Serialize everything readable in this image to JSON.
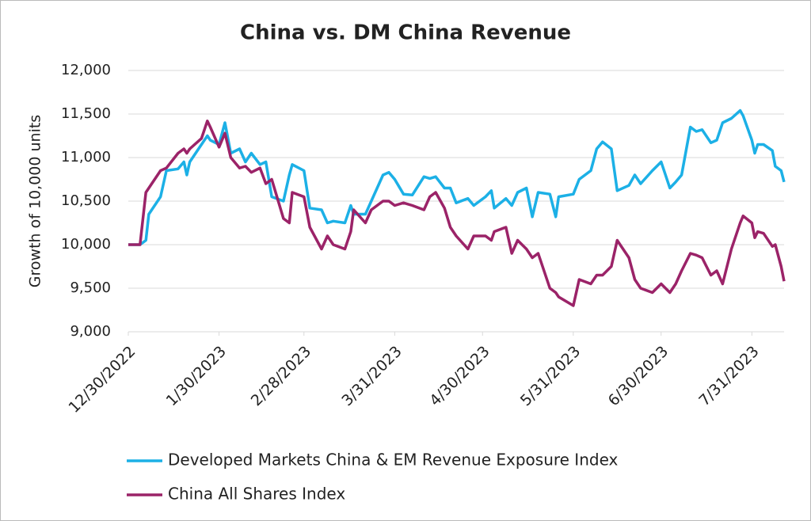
{
  "chart_data": {
    "type": "line",
    "title": "China vs. DM China Revenue",
    "y_label": "Growth of 10,000 units",
    "x": [
      "2022-12-30",
      "2023-01-03",
      "2023-01-05",
      "2023-01-06",
      "2023-01-10",
      "2023-01-12",
      "2023-01-16",
      "2023-01-18",
      "2023-01-19",
      "2023-01-20",
      "2023-01-24",
      "2023-01-26",
      "2023-01-27",
      "2023-01-30",
      "2023-02-01",
      "2023-02-03",
      "2023-02-06",
      "2023-02-08",
      "2023-02-10",
      "2023-02-13",
      "2023-02-15",
      "2023-02-17",
      "2023-02-21",
      "2023-02-23",
      "2023-02-24",
      "2023-02-28",
      "2023-03-02",
      "2023-03-06",
      "2023-03-08",
      "2023-03-10",
      "2023-03-14",
      "2023-03-16",
      "2023-03-17",
      "2023-03-21",
      "2023-03-23",
      "2023-03-27",
      "2023-03-29",
      "2023-03-31",
      "2023-04-03",
      "2023-04-06",
      "2023-04-10",
      "2023-04-12",
      "2023-04-14",
      "2023-04-17",
      "2023-04-19",
      "2023-04-21",
      "2023-04-25",
      "2023-04-27",
      "2023-05-01",
      "2023-05-03",
      "2023-05-04",
      "2023-05-08",
      "2023-05-10",
      "2023-05-12",
      "2023-05-15",
      "2023-05-17",
      "2023-05-19",
      "2023-05-23",
      "2023-05-25",
      "2023-05-26",
      "2023-05-31",
      "2023-06-02",
      "2023-06-06",
      "2023-06-08",
      "2023-06-10",
      "2023-06-13",
      "2023-06-15",
      "2023-06-19",
      "2023-06-21",
      "2023-06-23",
      "2023-06-27",
      "2023-06-30",
      "2023-07-03",
      "2023-07-05",
      "2023-07-07",
      "2023-07-10",
      "2023-07-12",
      "2023-07-14",
      "2023-07-17",
      "2023-07-19",
      "2023-07-21",
      "2023-07-24",
      "2023-07-27",
      "2023-07-28",
      "2023-07-31",
      "2023-08-01",
      "2023-08-02",
      "2023-08-04",
      "2023-08-07",
      "2023-08-08",
      "2023-08-10",
      "2023-08-11"
    ],
    "series": [
      {
        "name": "Developed Markets China & EM Revenue Exposure Index",
        "color": "#1cb0e6",
        "values": [
          10000,
          10000,
          10050,
          10350,
          10550,
          10850,
          10870,
          10950,
          10800,
          10950,
          11150,
          11250,
          11200,
          11150,
          11400,
          11050,
          11100,
          10950,
          11050,
          10920,
          10950,
          10550,
          10500,
          10800,
          10920,
          10850,
          10420,
          10400,
          10250,
          10270,
          10250,
          10450,
          10350,
          10350,
          10500,
          10800,
          10830,
          10750,
          10580,
          10570,
          10780,
          10760,
          10780,
          10650,
          10650,
          10480,
          10530,
          10450,
          10550,
          10620,
          10420,
          10530,
          10450,
          10600,
          10650,
          10320,
          10600,
          10580,
          10320,
          10550,
          10580,
          10750,
          10850,
          11100,
          11180,
          11100,
          10620,
          10680,
          10800,
          10700,
          10850,
          10950,
          10650,
          10720,
          10800,
          11350,
          11300,
          11320,
          11170,
          11200,
          11400,
          11450,
          11540,
          11480,
          11200,
          11050,
          11150,
          11150,
          11080,
          10900,
          10850,
          10720
        ]
      },
      {
        "name": "China All Shares Index",
        "color": "#9b2368",
        "values": [
          10000,
          10000,
          10600,
          10650,
          10850,
          10880,
          11050,
          11100,
          11050,
          11100,
          11220,
          11420,
          11350,
          11120,
          11280,
          11000,
          10880,
          10900,
          10830,
          10880,
          10700,
          10750,
          10300,
          10250,
          10600,
          10550,
          10200,
          9950,
          10100,
          10000,
          9950,
          10150,
          10400,
          10250,
          10400,
          10500,
          10500,
          10450,
          10480,
          10450,
          10400,
          10550,
          10600,
          10420,
          10200,
          10100,
          9950,
          10100,
          10100,
          10050,
          10150,
          10200,
          9900,
          10050,
          9950,
          9850,
          9900,
          9500,
          9450,
          9400,
          9300,
          9600,
          9550,
          9650,
          9650,
          9750,
          10050,
          9850,
          9600,
          9500,
          9450,
          9550,
          9450,
          9550,
          9700,
          9900,
          9880,
          9850,
          9650,
          9700,
          9550,
          9950,
          10250,
          10330,
          10250,
          10080,
          10150,
          10130,
          9980,
          10000,
          9750,
          9580
        ]
      }
    ],
    "xlim": [
      "2022-12-30",
      "2023-08-11"
    ],
    "xticks": [
      {
        "value": "2022-12-30",
        "label": "12/30/2022"
      },
      {
        "value": "2023-01-30",
        "label": "1/30/2023"
      },
      {
        "value": "2023-02-28",
        "label": "2/28/2023"
      },
      {
        "value": "2023-03-31",
        "label": "3/31/2023"
      },
      {
        "value": "2023-04-30",
        "label": "4/30/2023"
      },
      {
        "value": "2023-05-31",
        "label": "5/31/2023"
      },
      {
        "value": "2023-06-30",
        "label": "6/30/2023"
      },
      {
        "value": "2023-07-31",
        "label": "7/31/2023"
      }
    ],
    "ylim": [
      9000,
      12000
    ],
    "yticks": [
      {
        "value": 9000,
        "label": "9,000"
      },
      {
        "value": 9500,
        "label": "9,500"
      },
      {
        "value": 10000,
        "label": "10,000"
      },
      {
        "value": 10500,
        "label": "10,500"
      },
      {
        "value": 11000,
        "label": "11,000"
      },
      {
        "value": 11500,
        "label": "11,500"
      },
      {
        "value": 12000,
        "label": "12,000"
      }
    ],
    "grid": true
  }
}
